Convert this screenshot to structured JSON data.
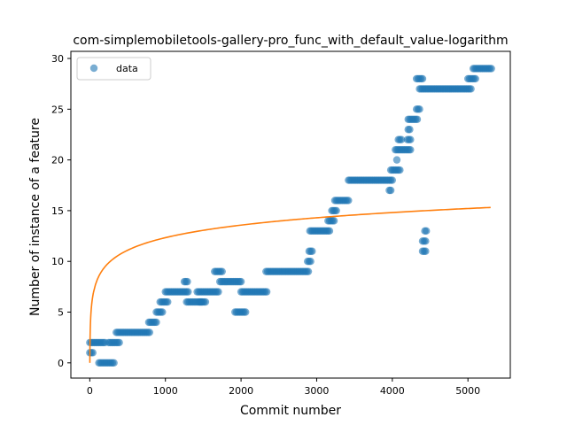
{
  "chart_data": {
    "type": "scatter",
    "title": "com-simplemobiletools-gallery-pro_func_with_default_value-logarithm",
    "xlabel": "Commit number",
    "ylabel": "Number of instance of a feature",
    "xlim": [
      -250,
      5560
    ],
    "ylim": [
      -1.5,
      30.7
    ],
    "xticks": [
      0,
      1000,
      2000,
      3000,
      4000,
      5000
    ],
    "yticks": [
      0,
      5,
      10,
      15,
      20,
      25,
      30
    ],
    "grid": false,
    "legend": {
      "entries": [
        "data"
      ],
      "placement": "top-left"
    },
    "colors": {
      "data": "#1f77b4",
      "fit": "#ff7f0e"
    },
    "series": [
      {
        "name": "data",
        "kind": "scatter",
        "segments": [
          [
            0,
            40,
            1
          ],
          [
            0,
            200,
            2
          ],
          [
            120,
            320,
            0
          ],
          [
            250,
            400,
            2
          ],
          [
            350,
            800,
            3
          ],
          [
            780,
            880,
            4
          ],
          [
            880,
            960,
            5
          ],
          [
            930,
            1030,
            6
          ],
          [
            1000,
            1300,
            7
          ],
          [
            1250,
            1300,
            8
          ],
          [
            1280,
            1480,
            6
          ],
          [
            1450,
            1540,
            6
          ],
          [
            1420,
            1700,
            7
          ],
          [
            1650,
            1750,
            9
          ],
          [
            1720,
            2010,
            8
          ],
          [
            1920,
            2060,
            5
          ],
          [
            2000,
            2350,
            7
          ],
          [
            2330,
            2900,
            9
          ],
          [
            2880,
            2920,
            10
          ],
          [
            2900,
            2940,
            11
          ],
          [
            2910,
            3180,
            13
          ],
          [
            3150,
            3230,
            14
          ],
          [
            3200,
            3260,
            15
          ],
          [
            3240,
            3420,
            16
          ],
          [
            3420,
            4000,
            18
          ],
          [
            3960,
            3990,
            17
          ],
          [
            3980,
            4100,
            19
          ],
          [
            4040,
            4250,
            21
          ],
          [
            4080,
            4120,
            22
          ],
          [
            4200,
            4240,
            22
          ],
          [
            4210,
            4230,
            23
          ],
          [
            4210,
            4330,
            24
          ],
          [
            4320,
            4360,
            25
          ],
          [
            4320,
            4400,
            28
          ],
          [
            4360,
            5050,
            27
          ],
          [
            5000,
            5110,
            28
          ],
          [
            5070,
            5320,
            29
          ],
          [
            4400,
            4440,
            11
          ],
          [
            4400,
            4450,
            12
          ],
          [
            4430,
            4460,
            13
          ]
        ],
        "points": [
          [
            4060,
            20
          ]
        ]
      },
      {
        "name": "",
        "kind": "line",
        "function": "logarithm",
        "a": 1.786,
        "x_range": [
          1,
          5300
        ]
      }
    ]
  }
}
